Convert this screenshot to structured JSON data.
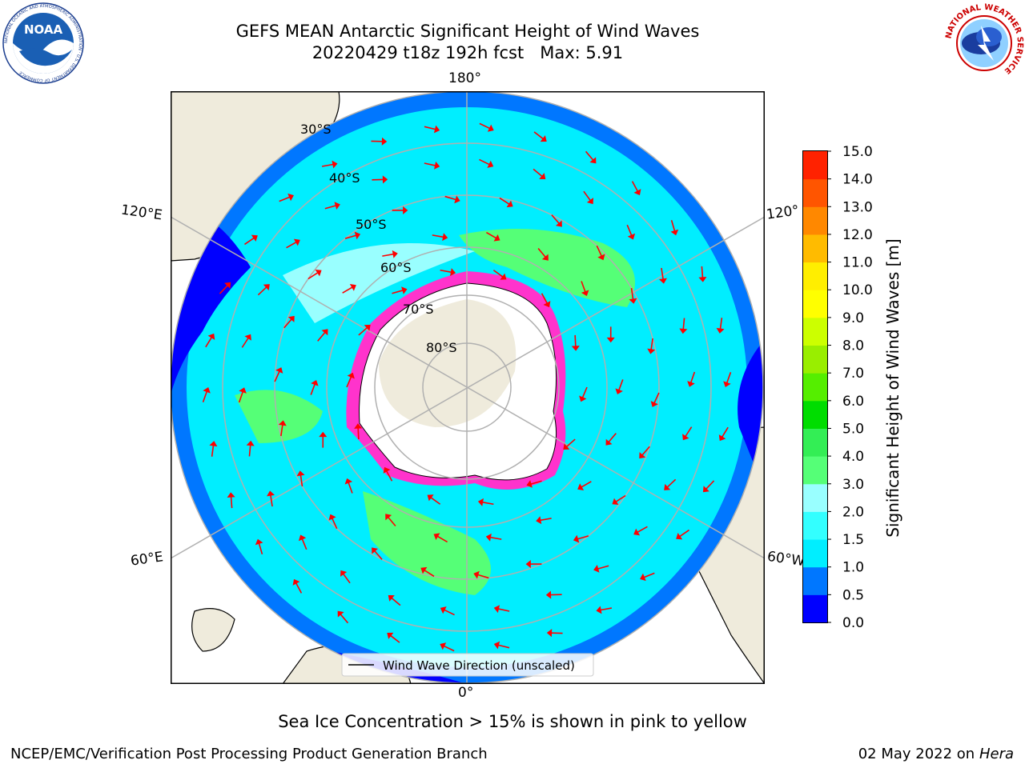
{
  "header": {
    "title_line1": "GEFS MEAN Antarctic Significant Height of Wind Waves",
    "title_line2": "20220429 t18z 192h fcst   Max: 5.91"
  },
  "logos": {
    "left": {
      "text": "NOAA",
      "ring_text": "NATIONAL OCEANIC AND ATMOSPHERIC ADMINISTRATION · U.S. DEPARTMENT OF COMMERCE"
    },
    "right": {
      "ring_text": "NATIONAL WEATHER SERVICE"
    }
  },
  "map": {
    "projection": "south-polar-stereographic",
    "lon_labels": {
      "top": "180°",
      "bottom": "0°",
      "left_upper": "120°E",
      "left_lower": "60°E",
      "right_upper": "120°",
      "right_lower": "60°W"
    },
    "lat_labels": [
      "30°S",
      "40°S",
      "50°S",
      "60°S",
      "70°S",
      "80°S"
    ],
    "legend": {
      "label": "Wind Wave Direction (unscaled)"
    },
    "colors": {
      "land": "#efebdc",
      "ice_free_ocean_ice_edge": "#ff33cc",
      "arrow": "#ff0000"
    }
  },
  "colorbar": {
    "label": "Significant Height of Wind Waves [m]",
    "ticks": [
      "0.0",
      "0.5",
      "1.0",
      "1.5",
      "2.0",
      "3.0",
      "4.0",
      "5.0",
      "6.0",
      "7.0",
      "8.0",
      "9.0",
      "10.0",
      "11.0",
      "12.0",
      "13.0",
      "14.0",
      "15.0"
    ],
    "colors": [
      "#0000ff",
      "#0077ff",
      "#00eeff",
      "#33ffff",
      "#99ffff",
      "#55ff77",
      "#33ee55",
      "#00dd00",
      "#55ee00",
      "#99ee00",
      "#ccff00",
      "#ffff00",
      "#ffee00",
      "#ffbb00",
      "#ff8800",
      "#ff5500",
      "#ff2200"
    ]
  },
  "footer": {
    "note": "Sea Ice Concentration > 15% is shown in pink to yellow",
    "left": "NCEP/EMC/Verification Post Processing Product Generation Branch",
    "right_date": "02 May 2022 on",
    "right_host": "Hera"
  }
}
